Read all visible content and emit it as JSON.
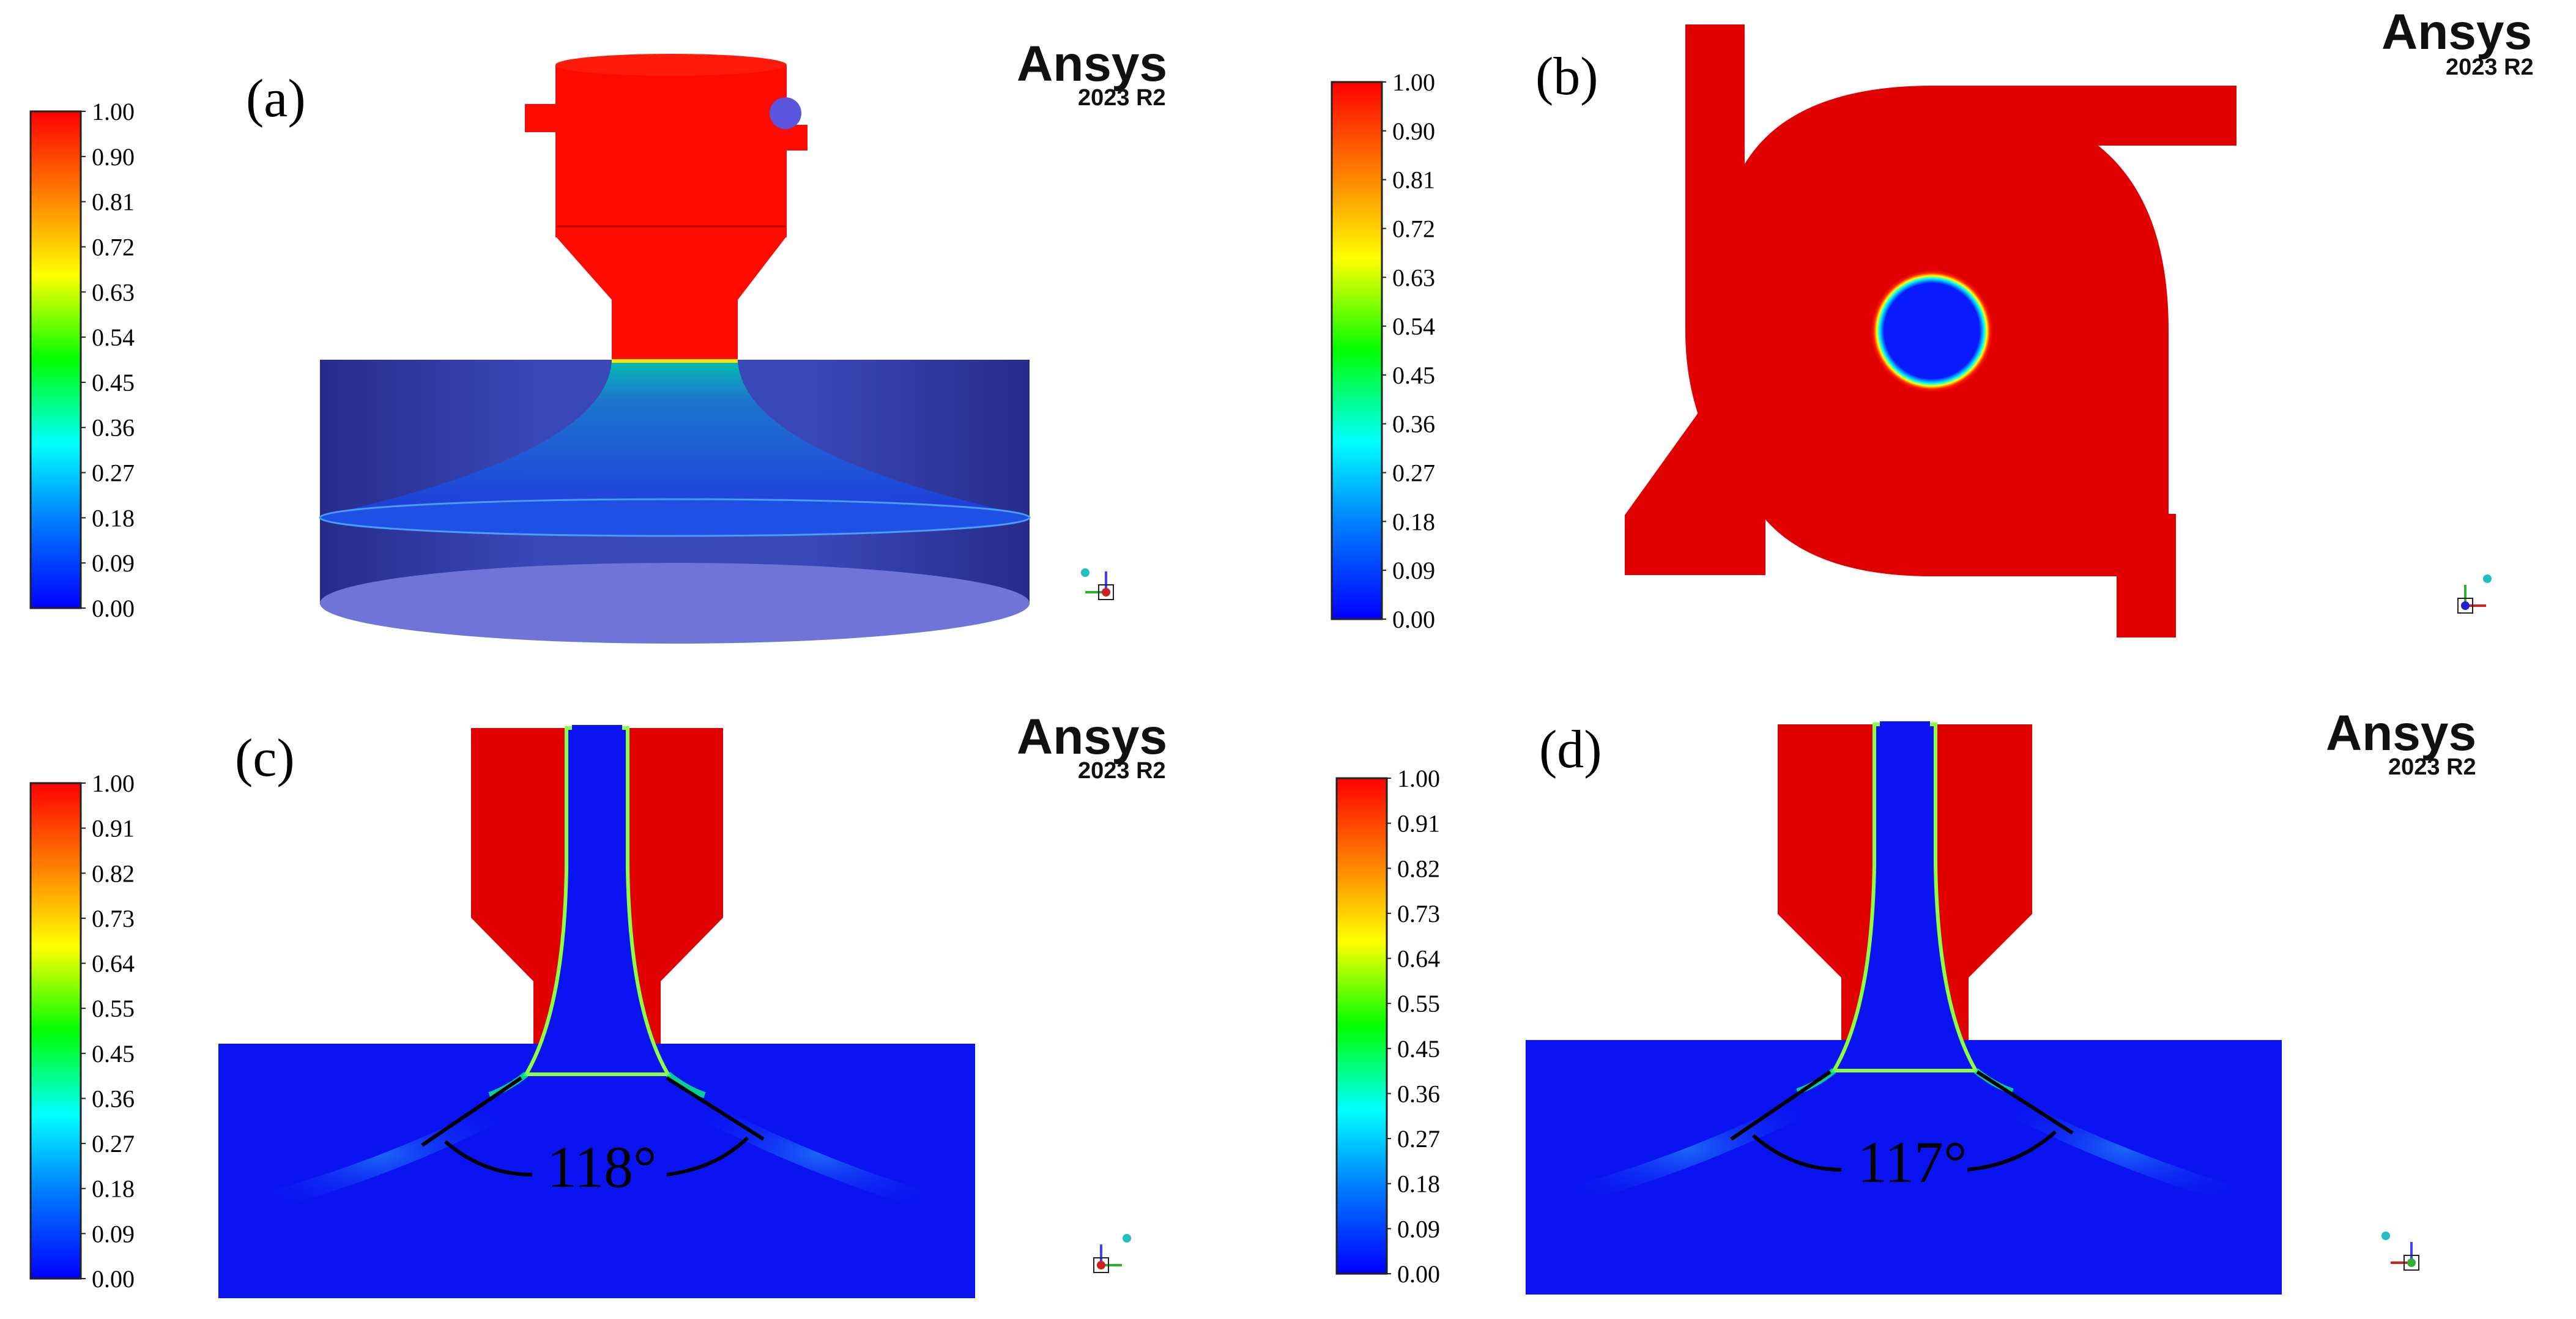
{
  "panels": [
    {
      "letter": "(a)",
      "brand": "Ansys",
      "version": "2023 R2",
      "colorbar_ticks": [
        "1.00",
        "0.90",
        "0.81",
        "0.72",
        "0.63",
        "0.54",
        "0.45",
        "0.36",
        "0.27",
        "0.18",
        "0.09",
        "0.00"
      ]
    },
    {
      "letter": "(b)",
      "brand": "Ansys",
      "version": "2023 R2",
      "colorbar_ticks": [
        "1.00",
        "0.90",
        "0.81",
        "0.72",
        "0.63",
        "0.54",
        "0.45",
        "0.36",
        "0.27",
        "0.18",
        "0.09",
        "0.00"
      ]
    },
    {
      "letter": "(c)",
      "brand": "Ansys",
      "version": "2023 R2",
      "angle_label": "118°",
      "colorbar_ticks": [
        "1.00",
        "0.91",
        "0.82",
        "0.73",
        "0.64",
        "0.55",
        "0.45",
        "0.36",
        "0.27",
        "0.18",
        "0.09",
        "0.00"
      ]
    },
    {
      "letter": "(d)",
      "brand": "Ansys",
      "version": "2023 R2",
      "angle_label": "117°",
      "colorbar_ticks": [
        "1.00",
        "0.91",
        "0.82",
        "0.73",
        "0.64",
        "0.55",
        "0.45",
        "0.36",
        "0.27",
        "0.18",
        "0.09",
        "0.00"
      ]
    }
  ],
  "colormap": [
    "#0000ff",
    "#0080ff",
    "#00ffff",
    "#00ff00",
    "#ffff00",
    "#ff8000",
    "#ff0000"
  ],
  "triad_icons": [
    "axis-triad-icon"
  ]
}
